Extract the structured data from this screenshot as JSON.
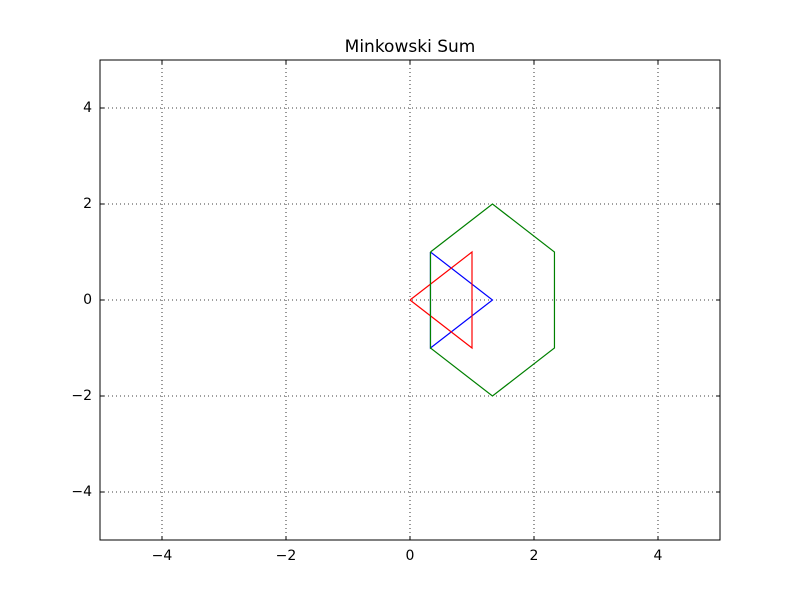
{
  "chart_data": {
    "type": "line",
    "title": "Minkowski Sum",
    "series": [
      {
        "color": "#0000ff",
        "x": [
          0.33,
          1.33,
          0.33,
          0.33
        ],
        "values": [
          1,
          0,
          -1,
          1
        ]
      },
      {
        "color": "#ff0000",
        "x": [
          0,
          1,
          1,
          0
        ],
        "values": [
          0,
          1,
          -1,
          0
        ]
      },
      {
        "color": "#008000",
        "x": [
          0.33,
          1.33,
          2.33,
          2.33,
          1.33,
          0.33,
          0.33
        ],
        "values": [
          1,
          2,
          1,
          -1,
          -2,
          -1,
          1
        ]
      }
    ],
    "xlim": [
      -5,
      5
    ],
    "ylim": [
      -5,
      5
    ],
    "xticks": [
      {
        "value": -4,
        "label": "−4"
      },
      {
        "value": -2,
        "label": "−2"
      },
      0,
      2,
      4
    ],
    "yticks": [
      {
        "value": -4,
        "label": "−4"
      },
      {
        "value": -2,
        "label": "−2"
      },
      0,
      2,
      4
    ],
    "grid": true
  }
}
